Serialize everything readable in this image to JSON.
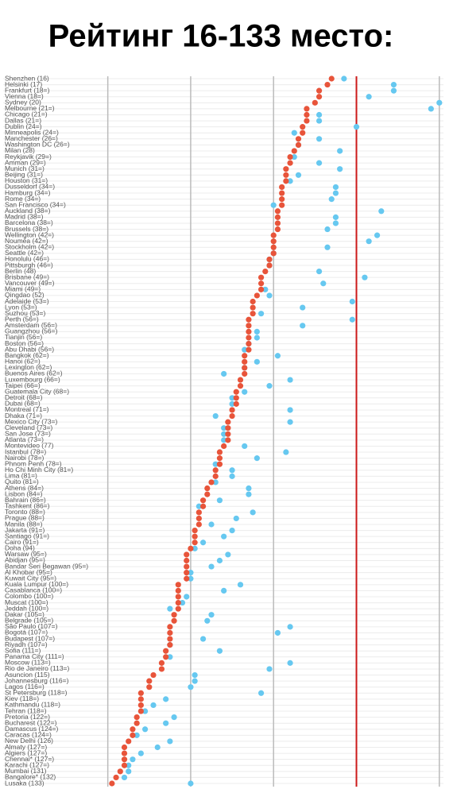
{
  "chart_data": {
    "type": "dot",
    "title": "Рейтинг 16-133 место:",
    "categories": [
      "Shenzhen (16)",
      "Helsinki (17)",
      "Frankfurt (18=)",
      "Vienna (18=)",
      "Sydney (20)",
      "Melbourne (21=)",
      "Chicago (21=)",
      "Dallas (21=)",
      "Dublin (24=)",
      "Minneapolis (24=)",
      "Manchester (26=)",
      "Washington DC (26=)",
      "Milan (28)",
      "Reykjavik (29=)",
      "Amman (29=)",
      "Munich (31=)",
      "Beijing (31=)",
      "Houston (31=)",
      "Dusseldorf (34=)",
      "Hamburg (34=)",
      "Rome (34=)",
      "San Francisco (34=)",
      "Auckland (38=)",
      "Madrid (38=)",
      "Barcelona (38=)",
      "Brussels (38=)",
      "Wellington (42=)",
      "Nouméa (42=)",
      "Stockholm (42=)",
      "Seattle (42=)",
      "Honolulu (46=)",
      "Pittsburgh (46=)",
      "Berlin (48)",
      "Brisbane (49=)",
      "Vancouver (49=)",
      "Miami (49=)",
      "Qingdao (52)",
      "Adelaide (53=)",
      "Lyon (53=)",
      "Suzhou (53=)",
      "Perth (56=)",
      "Amsterdam (56=)",
      "Guangzhou (56=)",
      "Tianjin (56=)",
      "Boston (56=)",
      "Abu Dhabi (56=)",
      "Bangkok (62=)",
      "Hanoi (62=)",
      "Lexington (62=)",
      "Buenos Aires (62=)",
      "Luxembourg (66=)",
      "Taipei (66=)",
      "Guatemala City (68=)",
      "Detroit (68=)",
      "Dubai (68=)",
      "Montreal (71=)",
      "Dhaka (71=)",
      "Mexico City (73=)",
      "Cleveland (73=)",
      "San Jose (73=)",
      "Atlanta (73=)",
      "Montevideo (77)",
      "Istanbul (78=)",
      "Nairobi (78=)",
      "Phnom Penh (78=)",
      "Ho Chi Minh City (81=)",
      "Lima (81=)",
      "Quito (81=)",
      "Athens (84=)",
      "Lisbon (84=)",
      "Bahrain (86=)",
      "Tashkent (86=)",
      "Toronto (88=)",
      "Prague (88=)",
      "Manila (88=)",
      "Jakarta (91=)",
      "Santiago (91=)",
      "Cairo (91=)",
      "Doha (94)",
      "Warsaw (95=)",
      "Abidjan (95=)",
      "Bandar Seri Begawan (95=)",
      "Al Khobar (95=)",
      "Kuwait City (95=)",
      "Kuala Lumpur (100=)",
      "Casablanca (100=)",
      "Colombo (100=)",
      "Muscat (100=)",
      "Jeddah (100=)",
      "Dakar (105=)",
      "Belgrade (105=)",
      "São Paulo (107=)",
      "Bogotá (107=)",
      "Budapest (107=)",
      "Riyadh (107=)",
      "Sofia (111=)",
      "Panama City (111=)",
      "Moscow (113=)",
      "Rio de Janeiro (113=)",
      "Asuncion (115)",
      "Johannesburg (116=)",
      "Lagos (116=)",
      "St Petersburg (118=)",
      "Kiev (118=)",
      "Kathmandu (118=)",
      "Tehran (118=)",
      "Pretoria (122=)",
      "Bucharest (122=)",
      "Damascus (124=)",
      "Caracas (124=)",
      "New Delhi (126)",
      "Almaty (127=)",
      "Algiers (127=)",
      "Chennai* (127=)",
      "Karachi (127=)",
      "Mumbai (131)",
      "Bangalore* (132)",
      "Lusaka (133)"
    ],
    "series": [
      {
        "color": "#66c8f0",
        "values": [
          2.85,
          3.45,
          3.45,
          3.15,
          4.0,
          3.9,
          2.55,
          2.55,
          3.0,
          2.25,
          2.55,
          2.3,
          2.8,
          2.25,
          2.55,
          2.8,
          2.3,
          2.2,
          2.75,
          2.75,
          2.7,
          2.0,
          3.3,
          2.75,
          2.75,
          2.65,
          3.25,
          3.15,
          2.65,
          2.0,
          1.95,
          1.95,
          2.55,
          3.1,
          2.6,
          1.9,
          1.95,
          2.95,
          2.35,
          1.85,
          2.95,
          2.35,
          1.8,
          1.8,
          1.7,
          1.65,
          2.05,
          1.8,
          1.65,
          1.4,
          2.2,
          1.95,
          1.65,
          1.5,
          1.5,
          2.2,
          1.3,
          2.2,
          1.4,
          1.4,
          1.4,
          1.65,
          2.15,
          1.8,
          1.3,
          1.5,
          1.5,
          1.3,
          1.7,
          1.7,
          1.35,
          1.1,
          1.75,
          1.55,
          1.25,
          1.5,
          1.4,
          1.15,
          1.05,
          1.45,
          1.35,
          1.25,
          1.0,
          1.0,
          1.6,
          1.4,
          0.95,
          0.9,
          0.75,
          1.25,
          1.2,
          2.2,
          2.05,
          1.15,
          0.75,
          1.35,
          0.75,
          2.2,
          1.95,
          1.05,
          1.05,
          1.0,
          1.85,
          0.7,
          0.55,
          0.45,
          0.8,
          0.7,
          0.45,
          0.35,
          0.75,
          0.6,
          0.4,
          0.3,
          0.25,
          0.25,
          0.2,
          1.0
        ]
      },
      {
        "color": "#e8543a",
        "values": [
          2.7,
          2.65,
          2.55,
          2.55,
          2.5,
          2.4,
          2.4,
          2.4,
          2.35,
          2.35,
          2.3,
          2.3,
          2.25,
          2.2,
          2.2,
          2.15,
          2.15,
          2.15,
          2.1,
          2.1,
          2.1,
          2.1,
          2.05,
          2.05,
          2.05,
          2.05,
          2.0,
          2.0,
          2.0,
          2.0,
          1.95,
          1.95,
          1.9,
          1.85,
          1.85,
          1.85,
          1.8,
          1.75,
          1.75,
          1.75,
          1.7,
          1.7,
          1.7,
          1.7,
          1.7,
          1.7,
          1.65,
          1.65,
          1.65,
          1.65,
          1.6,
          1.6,
          1.55,
          1.55,
          1.55,
          1.5,
          1.5,
          1.45,
          1.45,
          1.45,
          1.45,
          1.4,
          1.35,
          1.35,
          1.35,
          1.3,
          1.3,
          1.25,
          1.2,
          1.2,
          1.15,
          1.15,
          1.1,
          1.1,
          1.1,
          1.05,
          1.05,
          1.05,
          1.0,
          0.95,
          0.95,
          0.95,
          0.95,
          0.95,
          0.85,
          0.85,
          0.85,
          0.85,
          0.85,
          0.8,
          0.8,
          0.75,
          0.75,
          0.75,
          0.75,
          0.7,
          0.7,
          0.65,
          0.65,
          0.55,
          0.5,
          0.5,
          0.4,
          0.4,
          0.4,
          0.4,
          0.35,
          0.35,
          0.3,
          0.3,
          0.25,
          0.2,
          0.2,
          0.2,
          0.2,
          0.15,
          0.1,
          0.05
        ]
      }
    ],
    "xlim": [
      -0.15,
      4.05
    ],
    "xticks": [
      0,
      1,
      2,
      4
    ],
    "reference_line": 3,
    "reference_color": "#cc1a1a",
    "grid": true
  }
}
